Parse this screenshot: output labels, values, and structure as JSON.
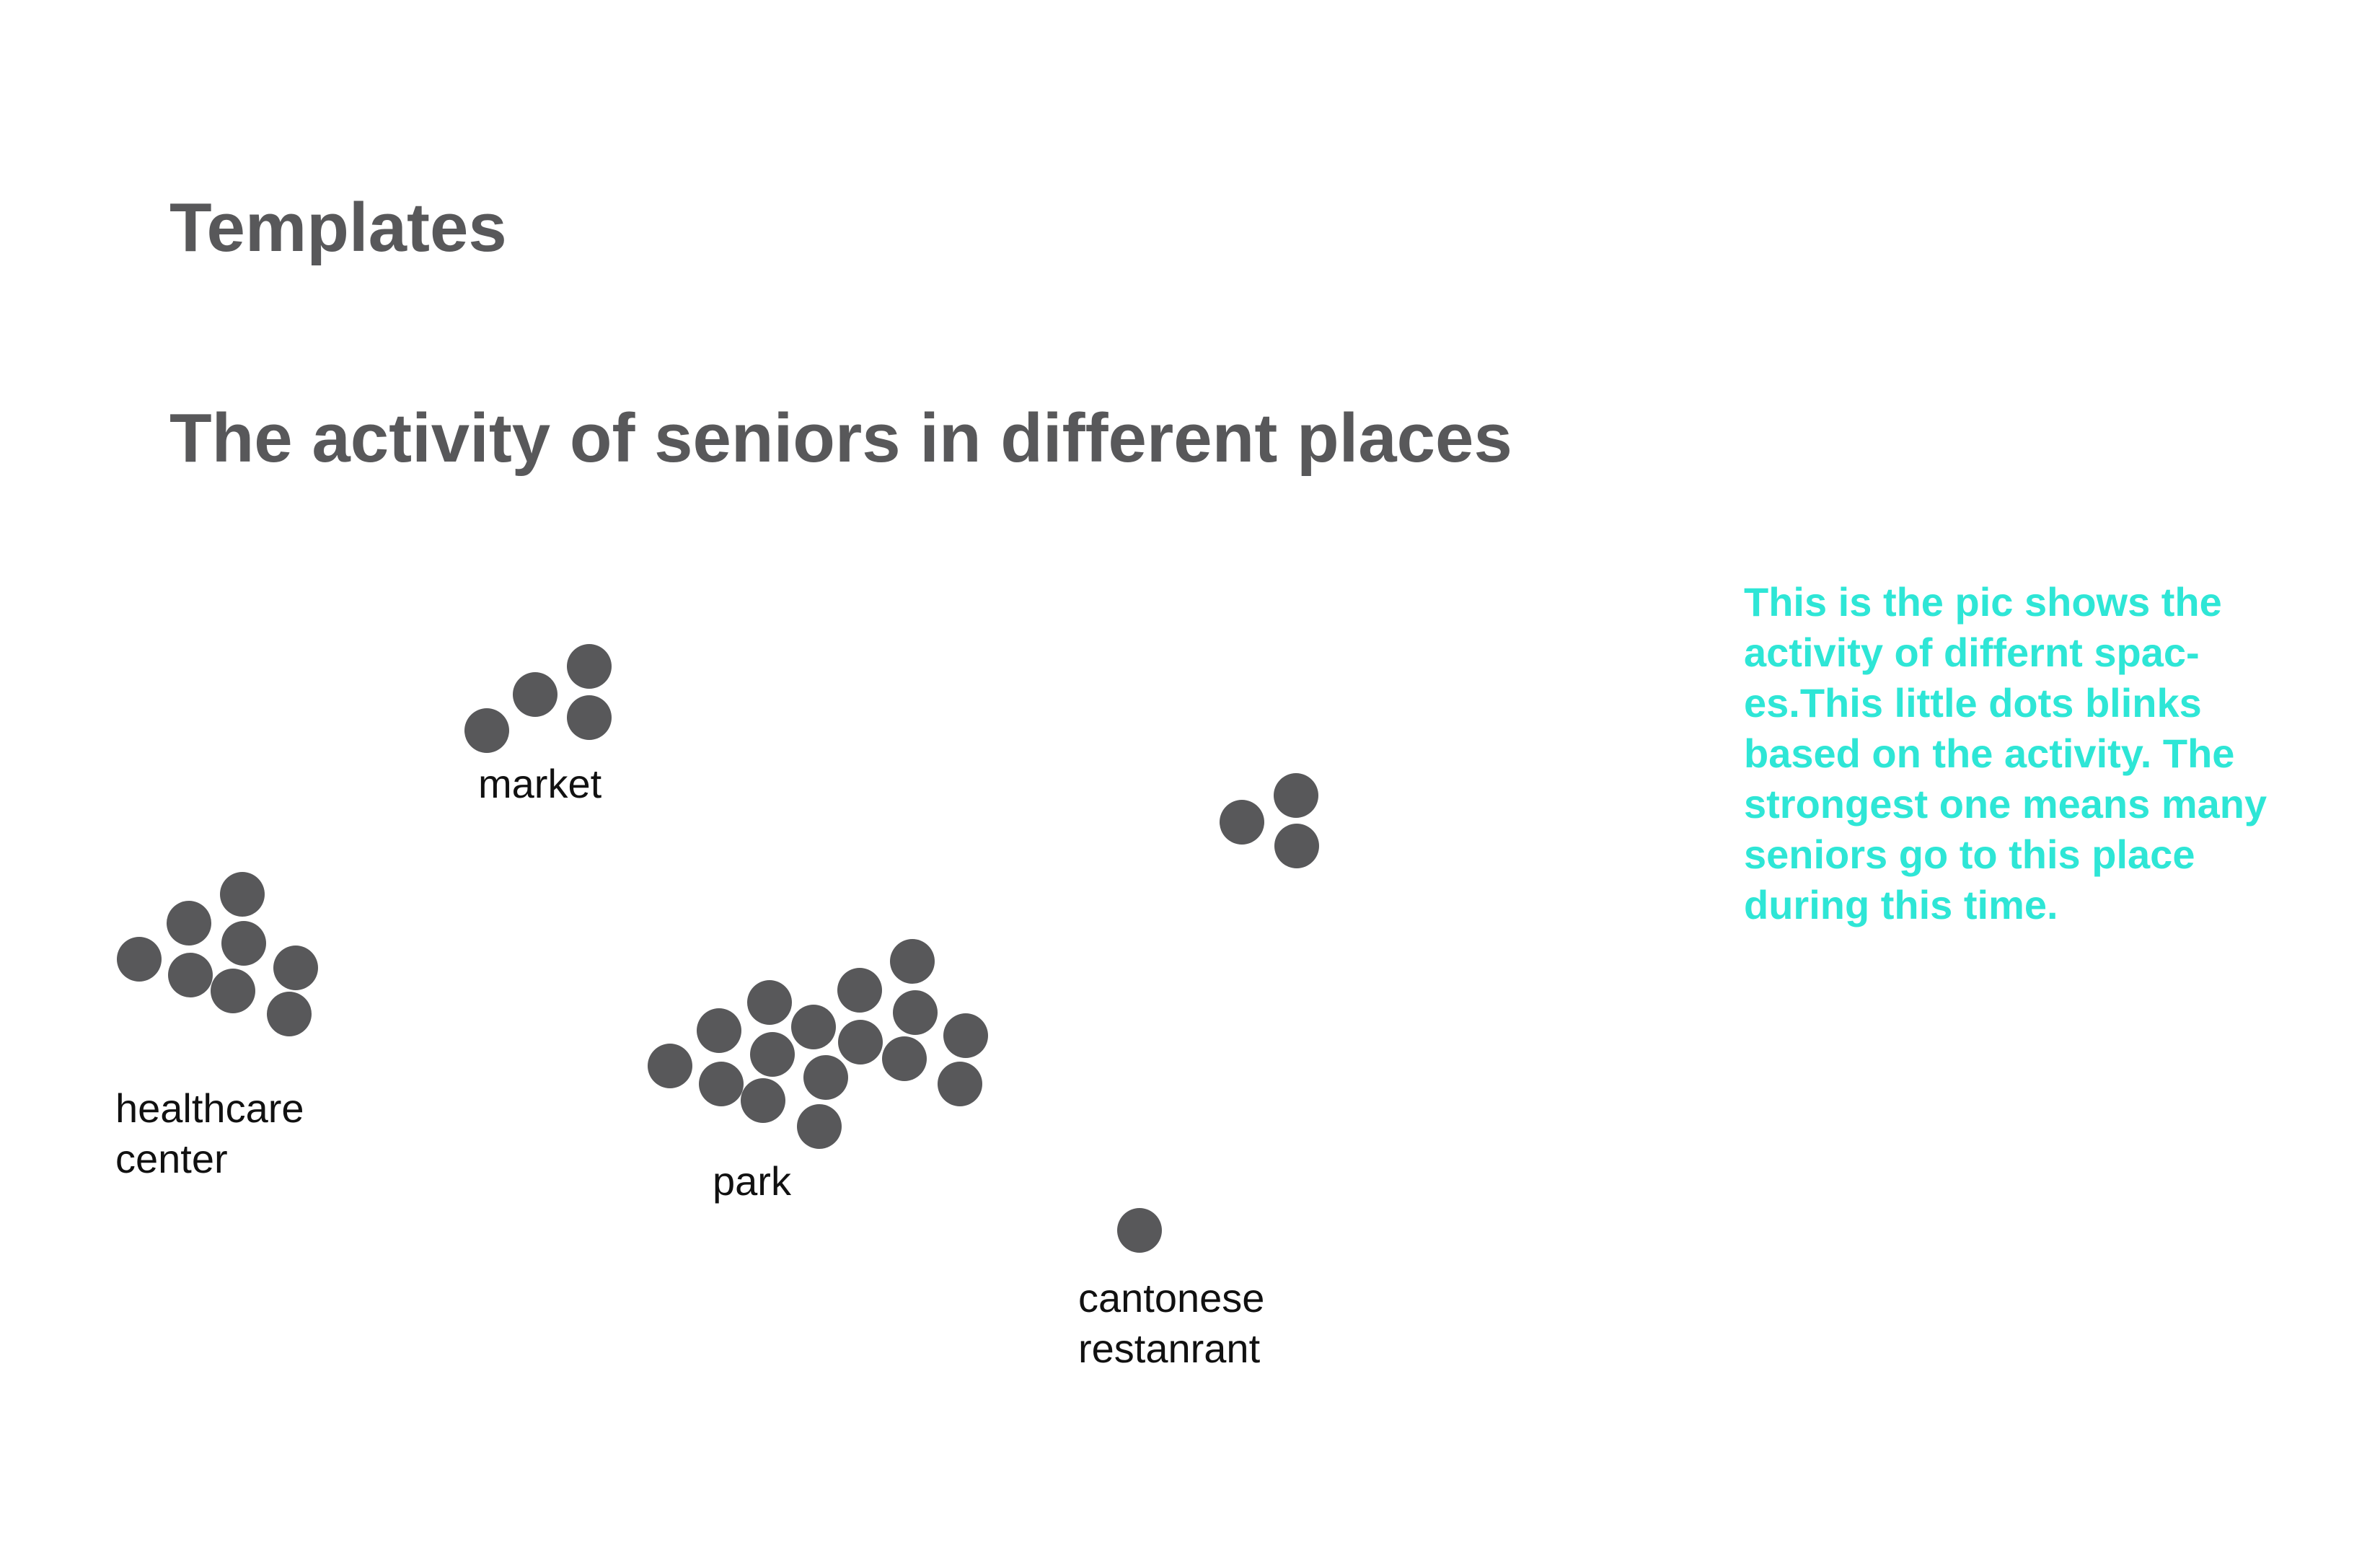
{
  "header": {
    "section_title": "Templates",
    "diagram_title": "The activity of seniors in different places"
  },
  "places": {
    "market": {
      "line1": "market"
    },
    "healthcare": {
      "line1": "healthcare",
      "line2": "center"
    },
    "park": {
      "line1": "park"
    },
    "cantonese": {
      "line1": "cantonese",
      "line2": "restanrant"
    }
  },
  "description": {
    "lines": [
      "This is the pic shows the",
      "activity of differnt spac-",
      "es.This little dots blinks",
      "based on the activity. The",
      "strongest one means many",
      "seniors go to this place",
      "during this time."
    ]
  },
  "colors": {
    "dot": "#58585a",
    "heading": "#58585a",
    "description": "#2ee6d6",
    "label": "#111111"
  }
}
